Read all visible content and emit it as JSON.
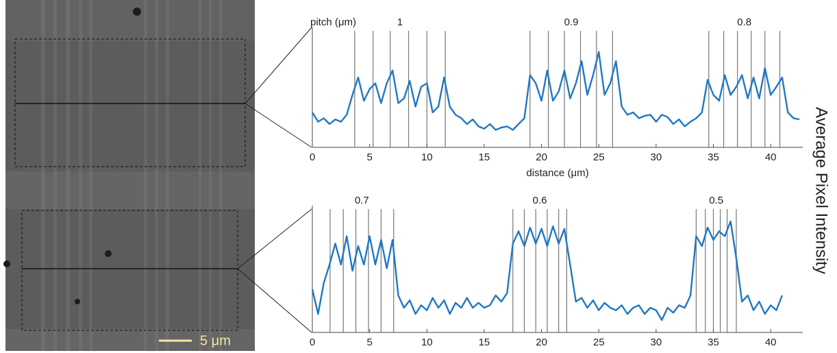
{
  "figure": {
    "y_label": "Average Pixel Intensity",
    "scale_bar_label": "5 μm"
  },
  "chart_data": [
    {
      "type": "line",
      "color": "#1f77c4",
      "group_title": "pitch (μm)",
      "x_label": "distance (μm)",
      "xlim": [
        0,
        42.8
      ],
      "xticks": [
        0,
        5,
        10,
        15,
        20,
        25,
        30,
        35,
        40
      ],
      "ylim": [
        0,
        1
      ],
      "groups": [
        {
          "label": "1",
          "lines": [
            3.7,
            5.3,
            6.8,
            8.4,
            10.0,
            11.6
          ]
        },
        {
          "label": "0.9",
          "lines": [
            19.0,
            20.6,
            22.0,
            23.4,
            24.8,
            26.2
          ]
        },
        {
          "label": "0.8",
          "lines": [
            34.6,
            35.9,
            37.1,
            38.3,
            39.5,
            40.8
          ]
        }
      ],
      "x": [
        0,
        0.5,
        1,
        1.5,
        2,
        2.5,
        3,
        3.5,
        4,
        4.5,
        5,
        5.5,
        6,
        6.5,
        7,
        7.5,
        8,
        8.5,
        9,
        9.5,
        10,
        10.5,
        11,
        11.5,
        12,
        12.5,
        13,
        13.5,
        14,
        14.5,
        15,
        15.5,
        16,
        16.5,
        17,
        17.5,
        18,
        18.5,
        19,
        19.5,
        20,
        20.5,
        21,
        21.5,
        22,
        22.5,
        23,
        23.5,
        24,
        24.5,
        25,
        25.5,
        26,
        26.5,
        27,
        27.5,
        28,
        28.5,
        29,
        29.5,
        30,
        30.5,
        31,
        31.5,
        32,
        32.5,
        33,
        33.5,
        34,
        34.5,
        35,
        35.5,
        36,
        36.5,
        37,
        37.5,
        38,
        38.5,
        39,
        39.5,
        40,
        40.5,
        41,
        41.5,
        42,
        42.5
      ],
      "values": [
        0.3,
        0.22,
        0.25,
        0.2,
        0.24,
        0.22,
        0.28,
        0.45,
        0.6,
        0.4,
        0.5,
        0.55,
        0.38,
        0.55,
        0.66,
        0.38,
        0.42,
        0.57,
        0.35,
        0.52,
        0.55,
        0.3,
        0.35,
        0.6,
        0.35,
        0.28,
        0.25,
        0.2,
        0.24,
        0.18,
        0.16,
        0.2,
        0.15,
        0.17,
        0.18,
        0.15,
        0.2,
        0.25,
        0.62,
        0.55,
        0.4,
        0.66,
        0.4,
        0.48,
        0.66,
        0.42,
        0.55,
        0.74,
        0.45,
        0.62,
        0.82,
        0.45,
        0.55,
        0.74,
        0.35,
        0.28,
        0.3,
        0.25,
        0.27,
        0.28,
        0.22,
        0.28,
        0.26,
        0.2,
        0.24,
        0.18,
        0.22,
        0.25,
        0.3,
        0.58,
        0.45,
        0.4,
        0.62,
        0.45,
        0.52,
        0.62,
        0.42,
        0.6,
        0.42,
        0.68,
        0.45,
        0.52,
        0.6,
        0.3,
        0.25,
        0.24
      ]
    },
    {
      "type": "line",
      "color": "#1f77c4",
      "xlim": [
        0,
        42.8
      ],
      "xticks": [
        0,
        5,
        10,
        15,
        20,
        25,
        30,
        35,
        40
      ],
      "ylim": [
        0,
        1
      ],
      "groups": [
        {
          "label": "0.7",
          "lines": [
            1.55,
            2.7,
            3.8,
            4.9,
            6.0,
            7.1
          ]
        },
        {
          "label": "0.6",
          "lines": [
            17.5,
            18.5,
            19.5,
            20.5,
            21.5,
            22.2
          ]
        },
        {
          "label": "0.5",
          "lines": [
            33.5,
            34.3,
            35.0,
            35.6,
            36.2,
            37.0
          ]
        }
      ],
      "x": [
        0,
        0.5,
        1,
        1.5,
        2,
        2.5,
        3,
        3.5,
        4,
        4.5,
        5,
        5.5,
        6,
        6.5,
        7,
        7.5,
        8,
        8.5,
        9,
        9.5,
        10,
        10.5,
        11,
        11.5,
        12,
        12.5,
        13,
        13.5,
        14,
        14.5,
        15,
        15.5,
        16,
        16.5,
        17,
        17.5,
        18,
        18.5,
        19,
        19.5,
        20,
        20.5,
        21,
        21.5,
        22,
        22.5,
        23,
        23.5,
        24,
        24.5,
        25,
        25.5,
        26,
        26.5,
        27,
        27.5,
        28,
        28.5,
        29,
        29.5,
        30,
        30.5,
        31,
        31.5,
        32,
        32.5,
        33,
        33.5,
        34,
        34.5,
        35,
        35.5,
        36,
        36.5,
        37,
        37.5,
        38,
        38.5,
        39,
        39.5,
        40,
        40.5,
        41
      ],
      "values": [
        0.35,
        0.15,
        0.4,
        0.55,
        0.72,
        0.55,
        0.78,
        0.5,
        0.7,
        0.55,
        0.78,
        0.55,
        0.75,
        0.52,
        0.75,
        0.3,
        0.2,
        0.26,
        0.15,
        0.22,
        0.18,
        0.28,
        0.2,
        0.26,
        0.15,
        0.24,
        0.2,
        0.28,
        0.2,
        0.24,
        0.2,
        0.22,
        0.3,
        0.25,
        0.32,
        0.72,
        0.82,
        0.7,
        0.85,
        0.72,
        0.84,
        0.7,
        0.86,
        0.72,
        0.84,
        0.55,
        0.25,
        0.28,
        0.2,
        0.26,
        0.18,
        0.24,
        0.2,
        0.18,
        0.22,
        0.15,
        0.2,
        0.22,
        0.15,
        0.2,
        0.18,
        0.1,
        0.2,
        0.16,
        0.22,
        0.2,
        0.3,
        0.78,
        0.7,
        0.85,
        0.75,
        0.82,
        0.78,
        0.9,
        0.6,
        0.25,
        0.3,
        0.18,
        0.25,
        0.15,
        0.22,
        0.18,
        0.3
      ]
    }
  ]
}
